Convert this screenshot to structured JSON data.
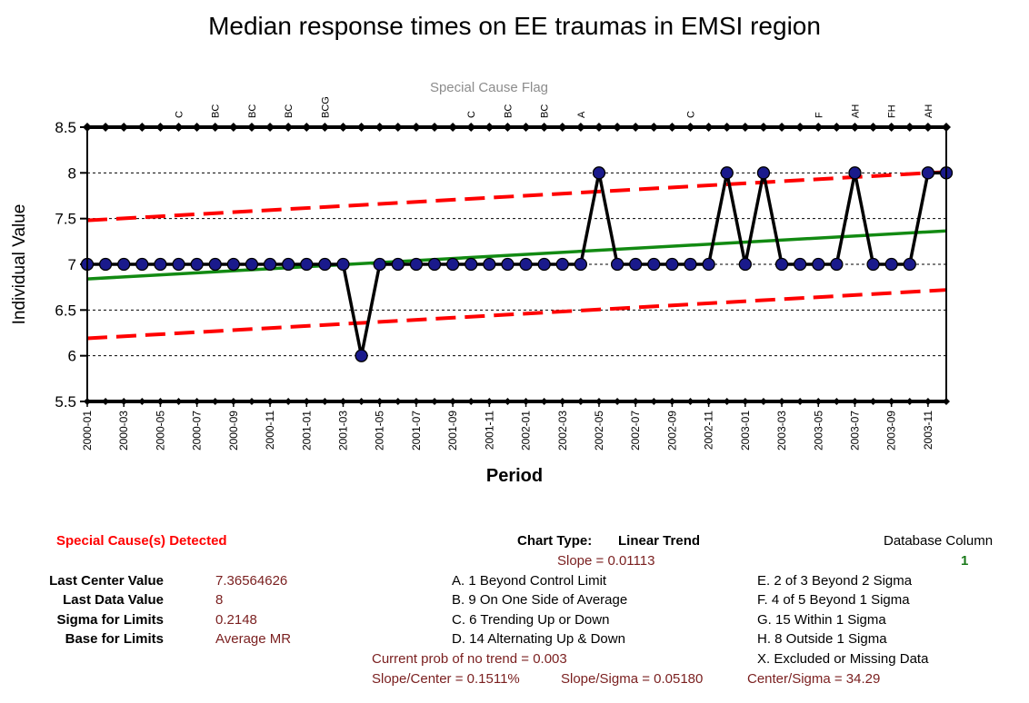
{
  "chart_data": {
    "type": "line",
    "title": "Median response times on EE traumas in EMSI region",
    "xlabel": "Period",
    "ylabel": "Individual Value",
    "ylim": [
      5.5,
      8.5
    ],
    "yticks": [
      "5.5",
      "6",
      "6.5",
      "7",
      "7.5",
      "8",
      "8.5"
    ],
    "flag_title": "Special Cause Flag",
    "x": [
      "2000-01",
      "2000-02",
      "2000-03",
      "2000-04",
      "2000-05",
      "2000-06",
      "2000-07",
      "2000-08",
      "2000-09",
      "2000-10",
      "2000-11",
      "2000-12",
      "2001-01",
      "2001-02",
      "2001-03",
      "2001-04",
      "2001-05",
      "2001-06",
      "2001-07",
      "2001-08",
      "2001-09",
      "2001-10",
      "2001-11",
      "2001-12",
      "2002-01",
      "2002-02",
      "2002-03",
      "2002-04",
      "2002-05",
      "2002-06",
      "2002-07",
      "2002-08",
      "2002-09",
      "2002-10",
      "2002-11",
      "2002-12",
      "2003-01",
      "2003-02",
      "2003-03",
      "2003-04",
      "2003-05",
      "2003-06",
      "2003-07",
      "2003-08",
      "2003-09",
      "2003-10",
      "2003-11",
      "2003-12"
    ],
    "xtick_labels": [
      "2000-01",
      "2000-03",
      "2000-05",
      "2000-07",
      "2000-09",
      "2000-11",
      "2001-01",
      "2001-03",
      "2001-05",
      "2001-07",
      "2001-09",
      "2001-11",
      "2002-01",
      "2002-03",
      "2002-05",
      "2002-07",
      "2002-09",
      "2002-11",
      "2003-01",
      "2003-03",
      "2003-05",
      "2003-07",
      "2003-09",
      "2003-11"
    ],
    "series": [
      {
        "values": [
          7,
          7,
          7,
          7,
          7,
          7,
          7,
          7,
          7,
          7,
          7,
          7,
          7,
          7,
          7,
          6,
          7,
          7,
          7,
          7,
          7,
          7,
          7,
          7,
          7,
          7,
          7,
          7,
          8,
          7,
          7,
          7,
          7,
          7,
          7,
          8,
          7,
          8,
          7,
          7,
          7,
          7,
          8,
          7,
          7,
          7,
          8,
          8
        ],
        "color": "#000000",
        "marker_color": "#1a1a8c"
      }
    ],
    "center_line": {
      "start": 6.84,
      "end": 7.3656,
      "color": "#128a12"
    },
    "upper_limit": {
      "start": 7.48,
      "end": 8.01,
      "color": "#ff0000"
    },
    "lower_limit": {
      "start": 6.19,
      "end": 6.72,
      "color": "#ff0000"
    },
    "special_cause_flags": [
      "",
      "",
      "",
      "",
      "",
      "C",
      "",
      "BC",
      "",
      "BC",
      "",
      "BC",
      "",
      "BCG",
      "",
      "",
      "",
      "",
      "",
      "",
      "",
      "C",
      "",
      "BC",
      "",
      "BC",
      "",
      "A",
      "",
      "",
      "",
      "",
      "",
      "C",
      "",
      "",
      "",
      "",
      "",
      "",
      "F",
      "",
      "AH",
      "",
      "FH",
      "",
      "AH",
      ""
    ]
  },
  "summary": {
    "special_cause_heading": "Special Cause(s) Detected",
    "chart_type_label": "Chart Type:",
    "chart_type_value": "Linear Trend",
    "slope": "Slope = 0.01113",
    "database_column_label": "Database Column",
    "database_column_value": "1",
    "stats": [
      {
        "label": "Last Center Value",
        "value": "7.36564626"
      },
      {
        "label": "Last Data Value",
        "value": "8"
      },
      {
        "label": "Sigma for Limits",
        "value": "0.2148"
      },
      {
        "label": "Base for Limits",
        "value": "Average MR"
      }
    ],
    "rules_left": [
      "A.  1 Beyond Control Limit",
      "B.  9 On One Side of Average",
      "C.  6 Trending Up or Down",
      "D.  14 Alternating  Up & Down"
    ],
    "rules_right": [
      "E.   2 of 3 Beyond 2 Sigma",
      "F.   4 of 5 Beyond 1 Sigma",
      "G.   15 Within 1 Sigma",
      "H.   8 Outside 1 Sigma",
      "X.   Excluded or Missing Data"
    ],
    "prob_no_trend": "Current prob of no trend = 0.003",
    "slope_center": "Slope/Center = 0.1511%",
    "slope_sigma": "Slope/Sigma = 0.05180",
    "center_sigma": "Center/Sigma = 34.29"
  }
}
